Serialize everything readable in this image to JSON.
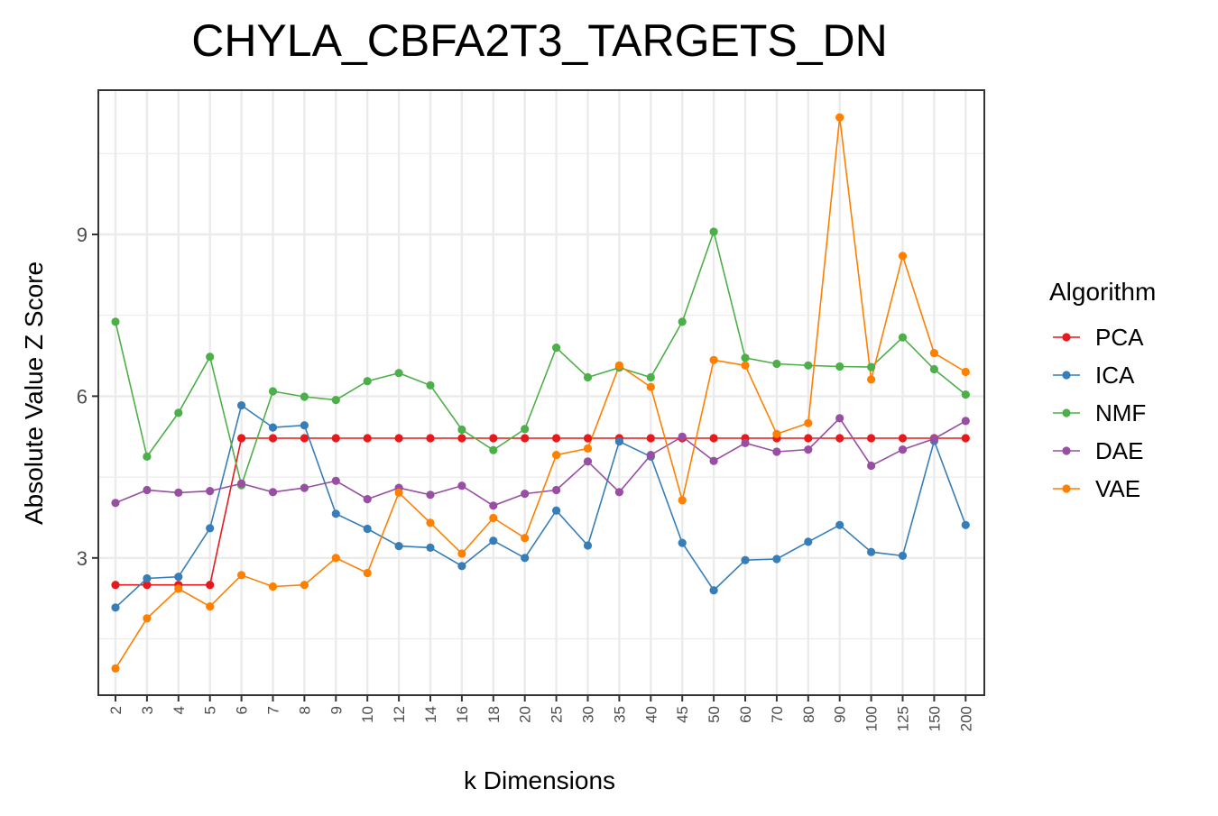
{
  "chart_data": {
    "type": "line",
    "title": "CHYLA_CBFA2T3_TARGETS_DN",
    "xlabel": "k Dimensions",
    "ylabel": "Absolute Value Z Score",
    "categories": [
      "2",
      "3",
      "4",
      "5",
      "6",
      "7",
      "8",
      "9",
      "10",
      "12",
      "14",
      "16",
      "18",
      "20",
      "25",
      "30",
      "35",
      "40",
      "45",
      "50",
      "60",
      "70",
      "80",
      "90",
      "100",
      "125",
      "150",
      "200"
    ],
    "y_ticks": [
      3,
      6,
      9
    ],
    "ylim": [
      0.8,
      11.5
    ],
    "grid": true,
    "legend": {
      "title": "Algorithm",
      "position": "right"
    },
    "series": [
      {
        "name": "PCA",
        "color": "#E41A1C",
        "values": [
          2.5,
          2.5,
          2.5,
          2.5,
          5.22,
          5.22,
          5.22,
          5.22,
          5.22,
          5.22,
          5.22,
          5.22,
          5.22,
          5.22,
          5.22,
          5.22,
          5.22,
          5.22,
          5.22,
          5.22,
          5.22,
          5.22,
          5.22,
          5.22,
          5.22,
          5.22,
          5.22,
          5.22
        ]
      },
      {
        "name": "ICA",
        "color": "#377EB8",
        "values": [
          2.08,
          2.62,
          2.65,
          3.55,
          5.83,
          5.42,
          5.46,
          3.82,
          3.54,
          3.22,
          3.19,
          2.85,
          3.32,
          3.0,
          3.88,
          3.23,
          5.16,
          4.88,
          3.28,
          2.4,
          2.96,
          2.98,
          3.3,
          3.61,
          3.11,
          3.04,
          5.17,
          3.61
        ]
      },
      {
        "name": "NMF",
        "color": "#4DAF4A",
        "values": [
          7.38,
          4.88,
          5.69,
          6.73,
          4.35,
          6.09,
          5.99,
          5.93,
          6.28,
          6.43,
          6.2,
          5.38,
          5.0,
          5.39,
          6.9,
          6.35,
          6.53,
          6.35,
          7.38,
          9.05,
          6.71,
          6.6,
          6.57,
          6.55,
          6.54,
          7.09,
          6.5,
          6.03
        ]
      },
      {
        "name": "DAE",
        "color": "#984EA3",
        "values": [
          4.02,
          4.26,
          4.21,
          4.24,
          4.38,
          4.22,
          4.3,
          4.43,
          4.09,
          4.3,
          4.17,
          4.34,
          3.97,
          4.19,
          4.26,
          4.79,
          4.22,
          4.91,
          5.25,
          4.8,
          5.13,
          4.97,
          5.01,
          5.59,
          4.71,
          5.01,
          5.21,
          5.54
        ]
      },
      {
        "name": "VAE",
        "color": "#FF7F00",
        "values": [
          0.95,
          1.88,
          2.43,
          2.1,
          2.68,
          2.47,
          2.5,
          3.0,
          2.72,
          4.21,
          3.65,
          3.08,
          3.74,
          3.37,
          4.91,
          5.03,
          6.57,
          6.17,
          4.07,
          6.67,
          6.57,
          5.3,
          5.5,
          11.17,
          6.31,
          8.6,
          6.8,
          6.45
        ]
      }
    ]
  }
}
